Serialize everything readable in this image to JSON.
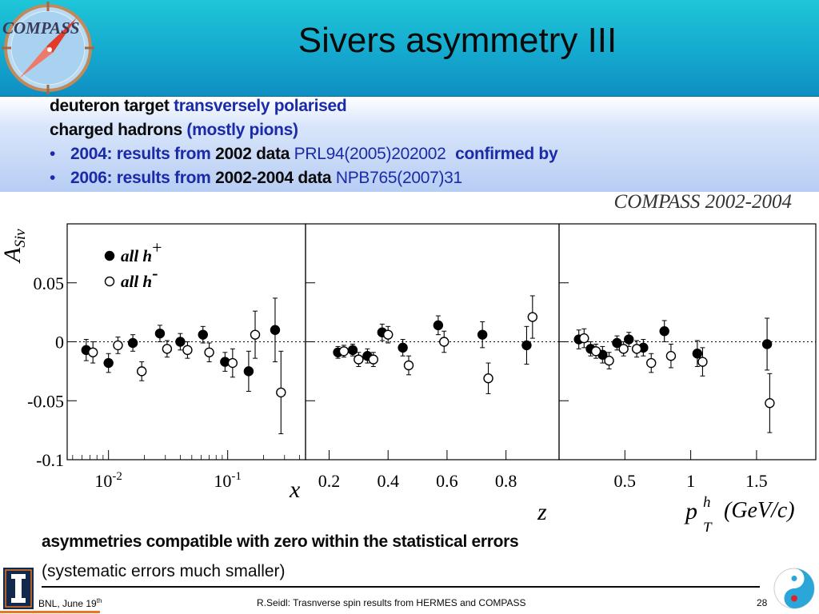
{
  "header": {
    "title": "Sivers asymmetry III",
    "logo_text": "COMPASS",
    "logo_icon": "compass-logo-icon"
  },
  "intro": {
    "line1_a": "deuteron target",
    "line1_b": "transversely polarised",
    "line2_a": "charged hadrons",
    "line2_b": "(mostly pions)",
    "bullet": "•",
    "item1_a": "2004: results from",
    "item1_b": "2002 data",
    "item1_c": "PRL94(2005)202002",
    "item1_d": "confirmed by",
    "item2_a": "2006: results from",
    "item2_b": "2002-2004 data",
    "item2_c": "NPB765(2007)31"
  },
  "chart_data": {
    "type": "scatter",
    "title": "COMPASS 2002-2004",
    "ylabel_main": "A",
    "ylabel_sub": "Siv",
    "ylim": [
      -0.1,
      0.1
    ],
    "yticks": [
      {
        "v": 0.05,
        "label": "0.05"
      },
      {
        "v": 0,
        "label": "0"
      },
      {
        "v": -0.05,
        "label": "-0.05"
      },
      {
        "v": -0.1,
        "label": "-0.1"
      }
    ],
    "legend": {
      "placement": "top-left",
      "entries": [
        {
          "label": "all h",
          "sup": "+",
          "marker": "filled"
        },
        {
          "label": "all h",
          "sup": "-",
          "marker": "open"
        }
      ]
    },
    "panels": [
      {
        "name": "x",
        "xlabel": "x",
        "xscale": "log",
        "xlim": [
          0.0045,
          0.45
        ],
        "xticks": [
          {
            "v": 0.01,
            "base": "10",
            "exp": "-2"
          },
          {
            "v": 0.1,
            "base": "10",
            "exp": "-1"
          }
        ],
        "series": [
          {
            "marker": "filled",
            "points": [
              {
                "x": 0.0065,
                "y": -0.007,
                "err": 0.009
              },
              {
                "x": 0.01,
                "y": -0.018,
                "err": 0.008
              },
              {
                "x": 0.016,
                "y": -0.001,
                "err": 0.007
              },
              {
                "x": 0.027,
                "y": 0.007,
                "err": 0.007
              },
              {
                "x": 0.04,
                "y": 0.0,
                "err": 0.007
              },
              {
                "x": 0.062,
                "y": 0.006,
                "err": 0.007
              },
              {
                "x": 0.095,
                "y": -0.017,
                "err": 0.008
              },
              {
                "x": 0.15,
                "y": -0.025,
                "err": 0.017
              },
              {
                "x": 0.25,
                "y": 0.01,
                "err": 0.027
              }
            ]
          },
          {
            "marker": "open",
            "points": [
              {
                "x": 0.0074,
                "y": -0.009,
                "err": 0.009
              },
              {
                "x": 0.012,
                "y": -0.003,
                "err": 0.007
              },
              {
                "x": 0.019,
                "y": -0.025,
                "err": 0.008
              },
              {
                "x": 0.031,
                "y": -0.006,
                "err": 0.007
              },
              {
                "x": 0.046,
                "y": -0.007,
                "err": 0.007
              },
              {
                "x": 0.07,
                "y": -0.009,
                "err": 0.008
              },
              {
                "x": 0.11,
                "y": -0.018,
                "err": 0.012
              },
              {
                "x": 0.17,
                "y": 0.006,
                "err": 0.02
              },
              {
                "x": 0.28,
                "y": -0.043,
                "err": 0.035
              }
            ]
          }
        ]
      },
      {
        "name": "z",
        "xlabel": "z",
        "xscale": "linear",
        "xlim": [
          0.12,
          0.98
        ],
        "xticks": [
          {
            "v": 0.2,
            "label": "0.2"
          },
          {
            "v": 0.4,
            "label": "0.4"
          },
          {
            "v": 0.6,
            "label": "0.6"
          },
          {
            "v": 0.8,
            "label": "0.8"
          }
        ],
        "series": [
          {
            "marker": "filled",
            "points": [
              {
                "x": 0.23,
                "y": -0.009,
                "err": 0.005
              },
              {
                "x": 0.28,
                "y": -0.007,
                "err": 0.005
              },
              {
                "x": 0.33,
                "y": -0.012,
                "err": 0.006
              },
              {
                "x": 0.38,
                "y": 0.008,
                "err": 0.007
              },
              {
                "x": 0.45,
                "y": -0.005,
                "err": 0.007
              },
              {
                "x": 0.57,
                "y": 0.014,
                "err": 0.008
              },
              {
                "x": 0.72,
                "y": 0.006,
                "err": 0.011
              },
              {
                "x": 0.87,
                "y": -0.003,
                "err": 0.016
              }
            ]
          },
          {
            "marker": "open",
            "points": [
              {
                "x": 0.25,
                "y": -0.008,
                "err": 0.005
              },
              {
                "x": 0.3,
                "y": -0.015,
                "err": 0.006
              },
              {
                "x": 0.35,
                "y": -0.015,
                "err": 0.006
              },
              {
                "x": 0.4,
                "y": 0.006,
                "err": 0.007
              },
              {
                "x": 0.47,
                "y": -0.02,
                "err": 0.008
              },
              {
                "x": 0.59,
                "y": 0.0,
                "err": 0.009
              },
              {
                "x": 0.74,
                "y": -0.031,
                "err": 0.013
              },
              {
                "x": 0.89,
                "y": 0.021,
                "err": 0.018
              }
            ]
          }
        ]
      },
      {
        "name": "pT",
        "xlabel": "p",
        "xlabel_sup": "h",
        "xlabel_sub": "T",
        "xlabel_unit": "(GeV/c)",
        "xscale": "linear",
        "xlim": [
          0.0,
          1.95
        ],
        "xticks": [
          {
            "v": 0.5,
            "label": "0.5"
          },
          {
            "v": 1.0,
            "label": "1"
          },
          {
            "v": 1.5,
            "label": "1.5"
          }
        ],
        "series": [
          {
            "marker": "filled",
            "points": [
              {
                "x": 0.15,
                "y": 0.002,
                "err": 0.008
              },
              {
                "x": 0.24,
                "y": -0.006,
                "err": 0.006
              },
              {
                "x": 0.33,
                "y": -0.011,
                "err": 0.007
              },
              {
                "x": 0.44,
                "y": -0.001,
                "err": 0.006
              },
              {
                "x": 0.53,
                "y": 0.002,
                "err": 0.006
              },
              {
                "x": 0.64,
                "y": -0.005,
                "err": 0.007
              },
              {
                "x": 0.8,
                "y": 0.009,
                "err": 0.009
              },
              {
                "x": 1.05,
                "y": -0.01,
                "err": 0.011
              },
              {
                "x": 1.58,
                "y": -0.002,
                "err": 0.022
              }
            ]
          },
          {
            "marker": "open",
            "points": [
              {
                "x": 0.19,
                "y": 0.003,
                "err": 0.008
              },
              {
                "x": 0.28,
                "y": -0.008,
                "err": 0.006
              },
              {
                "x": 0.38,
                "y": -0.016,
                "err": 0.007
              },
              {
                "x": 0.49,
                "y": -0.006,
                "err": 0.006
              },
              {
                "x": 0.59,
                "y": -0.006,
                "err": 0.007
              },
              {
                "x": 0.7,
                "y": -0.018,
                "err": 0.008
              },
              {
                "x": 0.85,
                "y": -0.012,
                "err": 0.01
              },
              {
                "x": 1.09,
                "y": -0.017,
                "err": 0.012
              },
              {
                "x": 1.6,
                "y": -0.052,
                "err": 0.025
              }
            ]
          }
        ]
      }
    ]
  },
  "notes": {
    "line1": "asymmetries compatible with zero within the statistical errors",
    "line2": "(systematic errors much smaller)"
  },
  "footer": {
    "left_main": "BNL, June 19",
    "left_sup": "th",
    "middle": "R.Seidl: Trasnverse spin results from HERMES and COMPASS",
    "page": "28"
  },
  "colors": {
    "header_top": "#1ec6d8",
    "header_bottom": "#0f8fc2",
    "band_blue": "#b7cdf3",
    "text_blue": "#1a2aa8",
    "footer_orange": "#e87722"
  }
}
